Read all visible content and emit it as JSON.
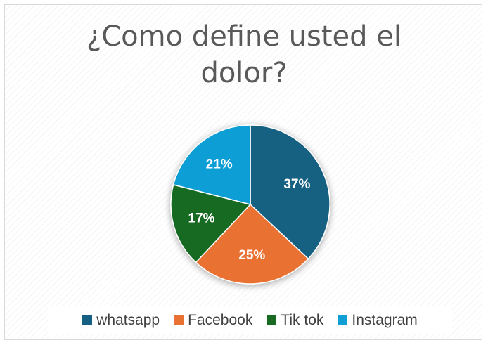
{
  "chart_data": {
    "type": "pie",
    "title": "¿Como define usted el dolor?",
    "categories": [
      "whatsapp",
      "Facebook",
      "Tik tok",
      "Instagram"
    ],
    "values": [
      37,
      25,
      17,
      21
    ],
    "labels": [
      "37%",
      "25%",
      "17%",
      "21%"
    ],
    "colors": [
      "#156082",
      "#E97132",
      "#196B24",
      "#0F9ED5"
    ],
    "legend_position": "bottom",
    "start_angle_deg": 0,
    "direction": "clockwise"
  },
  "legend": {
    "items": [
      {
        "label": "whatsapp",
        "color": "#156082"
      },
      {
        "label": "Facebook",
        "color": "#E97132"
      },
      {
        "label": "Tik tok",
        "color": "#196B24"
      },
      {
        "label": "Instagram",
        "color": "#0F9ED5"
      }
    ]
  }
}
